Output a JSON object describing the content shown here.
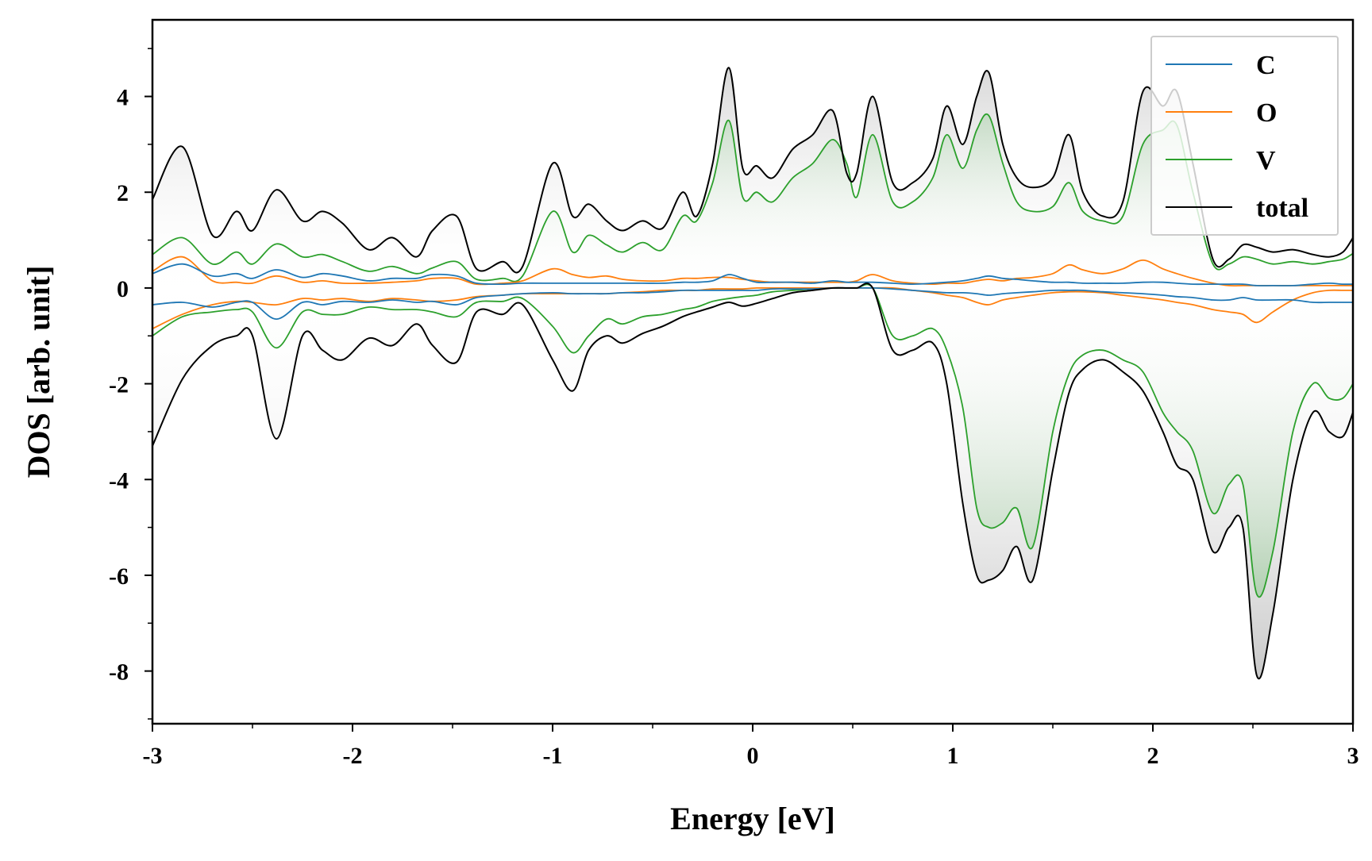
{
  "chart_data": {
    "type": "area",
    "title": "",
    "xlabel": "Energy [eV]",
    "ylabel": "DOS [arb. unit]",
    "xlim": [
      -3,
      3
    ],
    "ylim": [
      -9.1,
      5.6
    ],
    "xticks": [
      "-3",
      "-2",
      "-1",
      "0",
      "1",
      "2",
      "3"
    ],
    "yticks": [
      "4",
      "2",
      "0",
      "-2",
      "-4",
      "-6",
      "-8"
    ],
    "grid": false,
    "legend_position": "top-right",
    "x": [
      -3.0,
      -2.85,
      -2.7,
      -2.58,
      -2.5,
      -2.38,
      -2.25,
      -2.15,
      -2.05,
      -1.92,
      -1.8,
      -1.68,
      -1.6,
      -1.48,
      -1.38,
      -1.25,
      -1.15,
      -1.0,
      -0.9,
      -0.82,
      -0.73,
      -0.65,
      -0.55,
      -0.45,
      -0.35,
      -0.28,
      -0.2,
      -0.12,
      -0.05,
      0.02,
      0.1,
      0.2,
      0.3,
      0.4,
      0.47,
      0.52,
      0.6,
      0.7,
      0.8,
      0.9,
      0.97,
      1.05,
      1.12,
      1.18,
      1.25,
      1.32,
      1.4,
      1.5,
      1.58,
      1.65,
      1.75,
      1.85,
      1.95,
      2.05,
      2.12,
      2.2,
      2.3,
      2.38,
      2.45,
      2.52,
      2.6,
      2.7,
      2.8,
      2.88,
      2.95,
      3.0
    ],
    "series": [
      {
        "name": "C",
        "color": "#1f77b4",
        "up": [
          0.3,
          0.5,
          0.25,
          0.3,
          0.2,
          0.38,
          0.22,
          0.3,
          0.25,
          0.15,
          0.2,
          0.2,
          0.28,
          0.25,
          0.1,
          0.08,
          0.1,
          0.1,
          0.1,
          0.1,
          0.1,
          0.1,
          0.1,
          0.1,
          0.12,
          0.12,
          0.15,
          0.28,
          0.2,
          0.12,
          0.12,
          0.12,
          0.1,
          0.15,
          0.12,
          0.12,
          0.12,
          0.1,
          0.08,
          0.1,
          0.12,
          0.15,
          0.2,
          0.25,
          0.2,
          0.18,
          0.15,
          0.12,
          0.12,
          0.1,
          0.1,
          0.1,
          0.12,
          0.12,
          0.1,
          0.08,
          0.08,
          0.08,
          0.08,
          0.05,
          0.05,
          0.05,
          0.08,
          0.1,
          0.08,
          0.08
        ],
        "down": [
          -0.35,
          -0.3,
          -0.4,
          -0.3,
          -0.3,
          -0.65,
          -0.3,
          -0.35,
          -0.28,
          -0.3,
          -0.25,
          -0.3,
          -0.28,
          -0.35,
          -0.2,
          -0.15,
          -0.12,
          -0.1,
          -0.12,
          -0.12,
          -0.12,
          -0.1,
          -0.1,
          -0.08,
          -0.05,
          -0.05,
          -0.05,
          -0.05,
          -0.05,
          -0.05,
          -0.02,
          -0.02,
          -0.02,
          0.0,
          0.0,
          0.0,
          0.0,
          -0.02,
          -0.05,
          -0.08,
          -0.1,
          -0.1,
          -0.12,
          -0.15,
          -0.12,
          -0.1,
          -0.08,
          -0.05,
          -0.05,
          -0.05,
          -0.08,
          -0.1,
          -0.12,
          -0.15,
          -0.18,
          -0.2,
          -0.25,
          -0.25,
          -0.2,
          -0.25,
          -0.25,
          -0.25,
          -0.3,
          -0.3,
          -0.3,
          -0.3
        ]
      },
      {
        "name": "O",
        "color": "#ff7f0e",
        "up": [
          0.35,
          0.65,
          0.15,
          0.12,
          0.1,
          0.25,
          0.12,
          0.15,
          0.1,
          0.1,
          0.12,
          0.15,
          0.2,
          0.2,
          0.08,
          0.1,
          0.15,
          0.4,
          0.28,
          0.22,
          0.25,
          0.18,
          0.15,
          0.15,
          0.2,
          0.2,
          0.22,
          0.22,
          0.18,
          0.15,
          0.12,
          0.12,
          0.12,
          0.12,
          0.12,
          0.15,
          0.28,
          0.15,
          0.1,
          0.08,
          0.1,
          0.1,
          0.15,
          0.18,
          0.15,
          0.2,
          0.22,
          0.3,
          0.48,
          0.38,
          0.3,
          0.4,
          0.58,
          0.4,
          0.3,
          0.2,
          0.1,
          0.05,
          0.05,
          0.05,
          0.05,
          0.05,
          0.05,
          0.05,
          0.05,
          0.05
        ],
        "down": [
          -0.85,
          -0.55,
          -0.35,
          -0.28,
          -0.3,
          -0.35,
          -0.22,
          -0.25,
          -0.22,
          -0.28,
          -0.22,
          -0.25,
          -0.28,
          -0.25,
          -0.18,
          -0.15,
          -0.12,
          -0.12,
          -0.12,
          -0.12,
          -0.12,
          -0.1,
          -0.08,
          -0.05,
          -0.05,
          -0.05,
          -0.02,
          -0.02,
          -0.02,
          0.0,
          0.0,
          0.0,
          0.0,
          0.0,
          0.0,
          0.0,
          0.0,
          0.0,
          -0.05,
          -0.1,
          -0.15,
          -0.2,
          -0.3,
          -0.35,
          -0.25,
          -0.2,
          -0.15,
          -0.1,
          -0.08,
          -0.08,
          -0.1,
          -0.15,
          -0.2,
          -0.25,
          -0.3,
          -0.35,
          -0.45,
          -0.5,
          -0.55,
          -0.72,
          -0.5,
          -0.25,
          -0.1,
          -0.05,
          -0.05,
          -0.05
        ]
      },
      {
        "name": "V",
        "color": "#2ca02c",
        "up": [
          0.7,
          1.05,
          0.5,
          0.75,
          0.5,
          0.92,
          0.65,
          0.7,
          0.55,
          0.35,
          0.45,
          0.3,
          0.42,
          0.55,
          0.18,
          0.2,
          0.25,
          1.6,
          0.75,
          1.1,
          0.9,
          0.75,
          0.95,
          0.8,
          1.5,
          1.4,
          2.2,
          3.5,
          1.9,
          2.0,
          1.8,
          2.3,
          2.6,
          3.1,
          2.6,
          1.9,
          3.2,
          1.8,
          1.8,
          2.3,
          3.2,
          2.5,
          3.3,
          3.6,
          2.6,
          1.8,
          1.6,
          1.7,
          2.2,
          1.6,
          1.4,
          1.5,
          3.0,
          3.3,
          3.4,
          2.0,
          0.5,
          0.5,
          0.65,
          0.6,
          0.5,
          0.55,
          0.5,
          0.55,
          0.6,
          0.72
        ],
        "down": [
          -1.0,
          -0.6,
          -0.5,
          -0.45,
          -0.5,
          -1.25,
          -0.5,
          -0.55,
          -0.55,
          -0.4,
          -0.45,
          -0.45,
          -0.5,
          -0.6,
          -0.3,
          -0.28,
          -0.22,
          -0.8,
          -1.35,
          -1.0,
          -0.65,
          -0.75,
          -0.6,
          -0.55,
          -0.45,
          -0.4,
          -0.28,
          -0.22,
          -0.18,
          -0.15,
          -0.08,
          -0.05,
          -0.02,
          0.0,
          0.0,
          0.0,
          0.0,
          -1.0,
          -1.0,
          -0.85,
          -1.3,
          -2.5,
          -4.6,
          -5.0,
          -4.9,
          -4.6,
          -5.4,
          -3.0,
          -1.8,
          -1.4,
          -1.3,
          -1.5,
          -1.75,
          -2.6,
          -3.0,
          -3.4,
          -4.7,
          -4.1,
          -4.1,
          -6.4,
          -5.5,
          -3.0,
          -2.0,
          -2.3,
          -2.3,
          -2.0
        ]
      },
      {
        "name": "total",
        "color": "#000000",
        "up": [
          1.85,
          2.95,
          1.1,
          1.6,
          1.2,
          2.05,
          1.4,
          1.6,
          1.35,
          0.8,
          1.05,
          0.65,
          1.2,
          1.5,
          0.4,
          0.55,
          0.45,
          2.6,
          1.5,
          1.75,
          1.4,
          1.2,
          1.4,
          1.25,
          2.0,
          1.5,
          2.6,
          4.6,
          2.5,
          2.55,
          2.3,
          2.9,
          3.2,
          3.7,
          2.4,
          2.4,
          4.0,
          2.2,
          2.2,
          2.7,
          3.8,
          3.0,
          4.0,
          4.5,
          3.0,
          2.3,
          2.1,
          2.3,
          3.2,
          2.0,
          1.5,
          1.8,
          4.1,
          3.8,
          4.1,
          2.6,
          0.6,
          0.6,
          0.9,
          0.85,
          0.75,
          0.8,
          0.7,
          0.65,
          0.75,
          1.05
        ],
        "down": [
          -3.3,
          -1.9,
          -1.2,
          -1.0,
          -1.0,
          -3.15,
          -1.0,
          -1.3,
          -1.5,
          -1.05,
          -1.2,
          -0.75,
          -1.2,
          -1.55,
          -0.5,
          -0.55,
          -0.35,
          -1.5,
          -2.15,
          -1.3,
          -1.0,
          -1.15,
          -0.95,
          -0.8,
          -0.6,
          -0.5,
          -0.4,
          -0.3,
          -0.38,
          -0.32,
          -0.22,
          -0.1,
          -0.05,
          0.0,
          0.0,
          0.0,
          0.0,
          -1.3,
          -1.3,
          -1.15,
          -2.0,
          -4.5,
          -6.0,
          -6.1,
          -5.9,
          -5.4,
          -6.1,
          -3.8,
          -2.2,
          -1.7,
          -1.5,
          -1.75,
          -2.15,
          -3.0,
          -3.7,
          -4.0,
          -5.5,
          -5.0,
          -5.0,
          -8.1,
          -6.8,
          -4.0,
          -2.6,
          -3.0,
          -3.1,
          -2.6
        ]
      }
    ]
  }
}
